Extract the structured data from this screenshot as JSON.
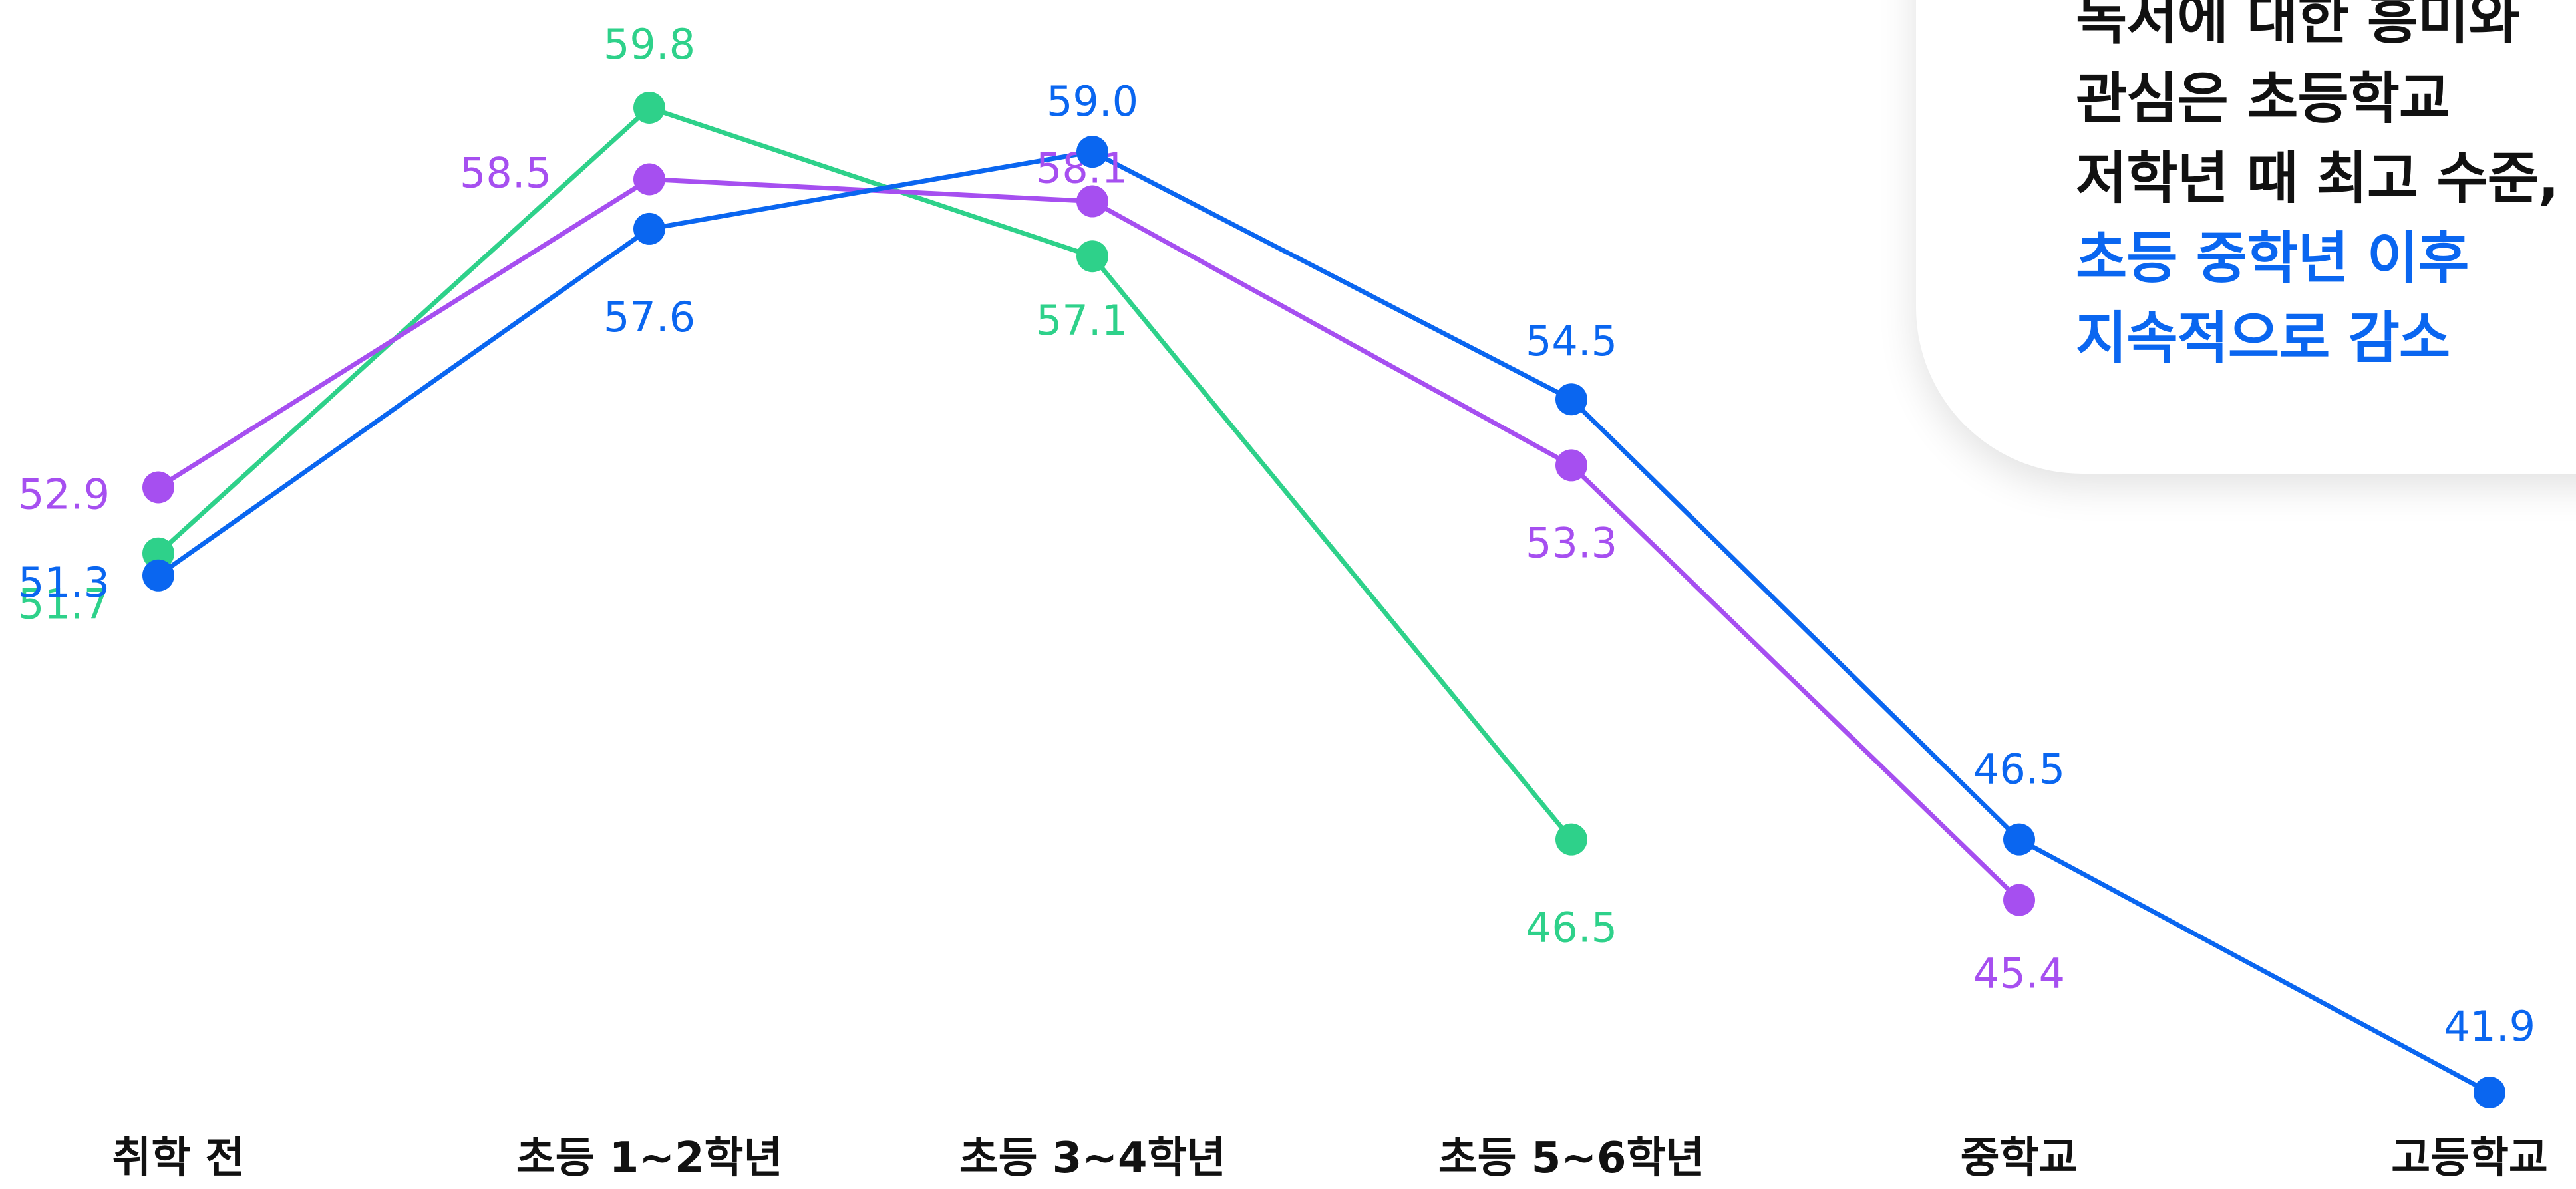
{
  "chart_data": {
    "type": "line",
    "categories": [
      "취학 전",
      "초등 1~2학년",
      "초등 3~4학년",
      "초등 5~6학년",
      "중학교",
      "고등학교"
    ],
    "series": [
      {
        "color": "#2ed18a",
        "values": [
          51.7,
          59.8,
          57.1,
          46.5,
          null,
          null
        ]
      },
      {
        "color": "#a64ff0",
        "values": [
          52.9,
          58.5,
          58.1,
          53.3,
          45.4,
          null
        ]
      },
      {
        "color": "#0a66f0",
        "values": [
          51.3,
          57.6,
          59.0,
          54.5,
          46.5,
          41.9
        ]
      }
    ],
    "ylim": [
      41.9,
      59.8
    ],
    "grid": false,
    "legend": "none"
  },
  "callout": {
    "lines": [
      {
        "text": "독서에 대한 흥미와",
        "color": "#111111"
      },
      {
        "text": "관심은 초등학교",
        "color": "#111111"
      },
      {
        "text": "저학년 때 최고 수준,",
        "color": "#111111"
      },
      {
        "text": "초등 중학년 이후",
        "color": "#0a66f0"
      },
      {
        "text": "지속적으로 감소",
        "color": "#0a66f0"
      }
    ]
  }
}
